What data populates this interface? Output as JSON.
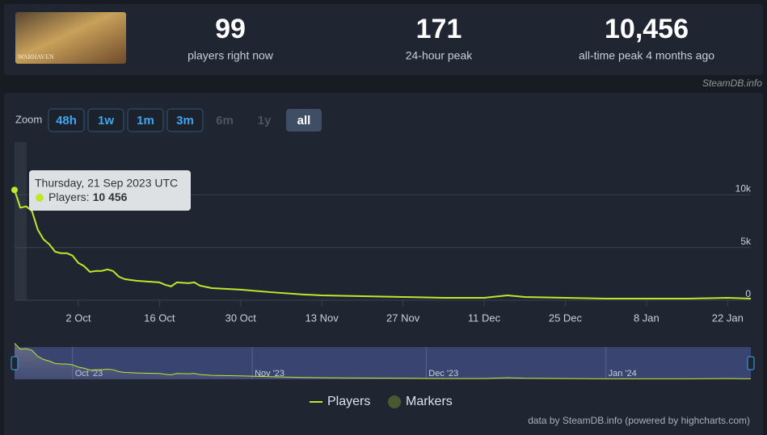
{
  "header": {
    "thumbnail_text": "WARHAVEN",
    "stats": [
      {
        "value": "99",
        "label": "players right now"
      },
      {
        "value": "171",
        "label": "24-hour peak"
      },
      {
        "value": "10,456",
        "label": "all-time peak 4 months ago"
      }
    ],
    "source": "SteamDB.info"
  },
  "zoom": {
    "label": "Zoom",
    "buttons": [
      {
        "label": "48h",
        "state": "enabled"
      },
      {
        "label": "1w",
        "state": "enabled"
      },
      {
        "label": "1m",
        "state": "enabled"
      },
      {
        "label": "3m",
        "state": "enabled"
      },
      {
        "label": "6m",
        "state": "disabled"
      },
      {
        "label": "1y",
        "state": "disabled"
      },
      {
        "label": "all",
        "state": "selected"
      }
    ]
  },
  "chart_data": {
    "type": "line",
    "x": [
      "2023-09-21",
      "2023-09-22",
      "2023-09-23",
      "2023-09-24",
      "2023-09-25",
      "2023-09-26",
      "2023-09-27",
      "2023-09-28",
      "2023-09-29",
      "2023-09-30",
      "2023-10-01",
      "2023-10-02",
      "2023-10-03",
      "2023-10-04",
      "2023-10-05",
      "2023-10-06",
      "2023-10-07",
      "2023-10-08",
      "2023-10-09",
      "2023-10-10",
      "2023-10-11",
      "2023-10-12",
      "2023-10-14",
      "2023-10-16",
      "2023-10-17",
      "2023-10-18",
      "2023-10-19",
      "2023-10-21",
      "2023-10-22",
      "2023-10-23",
      "2023-10-25",
      "2023-10-30",
      "2023-11-04",
      "2023-11-10",
      "2023-11-13",
      "2023-11-20",
      "2023-11-27",
      "2023-12-04",
      "2023-12-11",
      "2023-12-15",
      "2023-12-18",
      "2023-12-25",
      "2024-01-01",
      "2024-01-08",
      "2024-01-15",
      "2024-01-22",
      "2024-01-26"
    ],
    "series": [
      {
        "name": "Players",
        "color": "#bfe82c",
        "values": [
          10456,
          8770,
          8900,
          8460,
          6700,
          5770,
          5300,
          4600,
          4460,
          4460,
          4230,
          3540,
          3230,
          2690,
          2770,
          2770,
          2920,
          2770,
          2230,
          2000,
          1920,
          1850,
          1770,
          1690,
          1460,
          1310,
          1690,
          1620,
          1690,
          1380,
          1150,
          1000,
          770,
          540,
          460,
          380,
          310,
          230,
          230,
          460,
          310,
          230,
          150,
          150,
          150,
          230,
          150
        ]
      },
      {
        "name": "Markers",
        "color": "#4a5a30",
        "type": "flags"
      }
    ],
    "xlim": [
      "2023-09-21",
      "2024-01-26"
    ],
    "xticks": [
      {
        "value": "2023-10-02",
        "label": "2 Oct"
      },
      {
        "value": "2023-10-16",
        "label": "16 Oct"
      },
      {
        "value": "2023-10-30",
        "label": "30 Oct"
      },
      {
        "value": "2023-11-13",
        "label": "13 Nov"
      },
      {
        "value": "2023-11-27",
        "label": "27 Nov"
      },
      {
        "value": "2023-12-11",
        "label": "11 Dec"
      },
      {
        "value": "2023-12-25",
        "label": "25 Dec"
      },
      {
        "value": "2024-01-08",
        "label": "8 Jan"
      },
      {
        "value": "2024-01-22",
        "label": "22 Jan"
      }
    ],
    "ylim": [
      0,
      15000
    ],
    "yticks": [
      0,
      {
        "value": 5000,
        "label": "5k"
      },
      {
        "value": 10000,
        "label": "10k"
      }
    ],
    "grid": true,
    "navigator_ticks": [
      {
        "value": "2023-10-01",
        "label": "Oct '23"
      },
      {
        "value": "2023-11-01",
        "label": "Nov '23"
      },
      {
        "value": "2023-12-01",
        "label": "Dec '23"
      },
      {
        "value": "2024-01-01",
        "label": "Jan '24"
      }
    ],
    "tooltip": {
      "date": "Thursday, 21 Sep 2023 UTC",
      "series_label": "Players:",
      "value_label": "10 456"
    },
    "credit": "data by SteamDB.info (powered by highcharts.com)"
  }
}
